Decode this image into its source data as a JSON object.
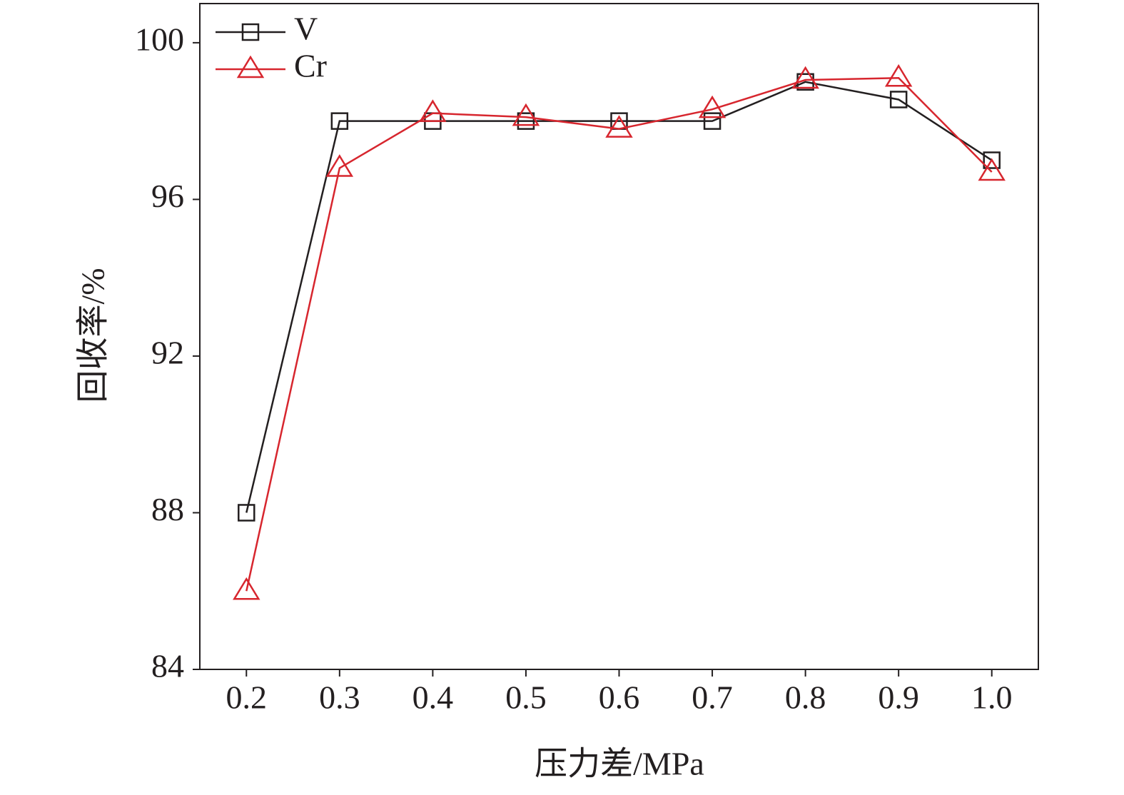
{
  "chart_data": {
    "type": "line",
    "x_label": "压力差/MPa",
    "y_label": "回收率/%",
    "x": [
      0.2,
      0.3,
      0.4,
      0.5,
      0.6,
      0.7,
      0.8,
      0.9,
      1.0
    ],
    "series": [
      {
        "name": "V",
        "color": "#231f20",
        "marker": "square",
        "values": [
          88,
          98,
          98,
          98,
          98,
          98,
          99,
          98.55,
          97
        ]
      },
      {
        "name": "Cr",
        "color": "#d7262e",
        "marker": "triangle",
        "values": [
          86,
          96.8,
          98.2,
          98.1,
          97.8,
          98.3,
          99.05,
          99.1,
          96.7
        ]
      }
    ],
    "xlim": [
      0.15,
      1.05
    ],
    "xticks": [
      0.2,
      0.3,
      0.4,
      0.5,
      0.6,
      0.7,
      0.8,
      0.9,
      {
        "value": 1,
        "label": "1.0"
      }
    ],
    "ylim": [
      84,
      101
    ],
    "yticks": [
      84,
      88,
      92,
      96,
      100
    ],
    "grid": false,
    "legend": "upper-left"
  }
}
